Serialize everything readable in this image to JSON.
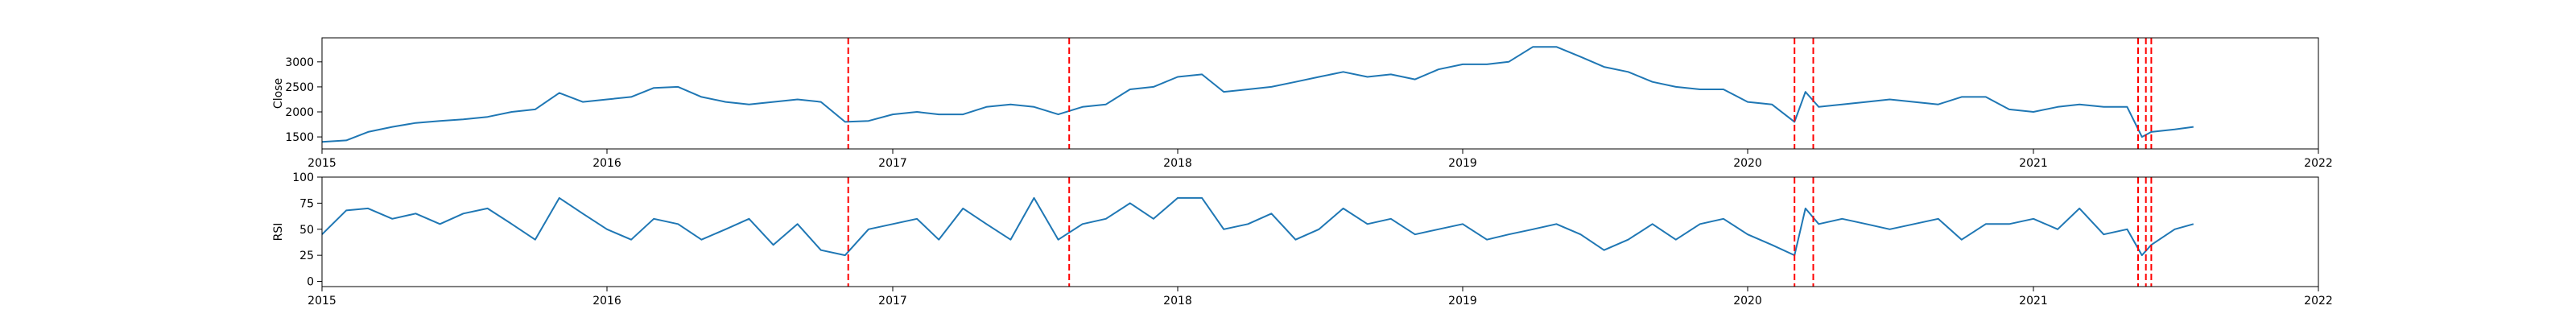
{
  "chart_data": [
    {
      "type": "line",
      "panel": "top",
      "title": "",
      "xlabel": "",
      "ylabel": "Close",
      "xlim": [
        "2015-01-01",
        "2022-01-01"
      ],
      "ylim": [
        1260,
        3480
      ],
      "xticks": [
        "2015",
        "2016",
        "2017",
        "2018",
        "2019",
        "2020",
        "2021",
        "2022"
      ],
      "yticks": [
        1500,
        2000,
        2500,
        3000
      ],
      "grid": false,
      "line_color": "#1f77b4",
      "vline_color": "#ff0000",
      "series": [
        {
          "x": [
            "2015-01-01",
            "2015-02-01",
            "2015-03-01",
            "2015-04-01",
            "2015-05-01",
            "2015-06-01",
            "2015-07-01",
            "2015-08-01",
            "2015-09-01",
            "2015-10-01",
            "2015-11-01",
            "2015-12-01",
            "2016-01-01",
            "2016-02-01",
            "2016-03-01",
            "2016-04-01",
            "2016-05-01",
            "2016-06-01",
            "2016-07-01",
            "2016-08-01",
            "2016-09-01",
            "2016-10-01",
            "2016-11-01",
            "2016-12-01",
            "2017-01-01",
            "2017-02-01",
            "2017-03-01",
            "2017-04-01",
            "2017-05-01",
            "2017-06-01",
            "2017-07-01",
            "2017-08-01",
            "2017-09-01",
            "2017-10-01",
            "2017-11-01",
            "2017-12-01",
            "2018-01-01",
            "2018-02-01",
            "2018-03-01",
            "2018-04-01",
            "2018-05-01",
            "2018-06-01",
            "2018-07-01",
            "2018-08-01",
            "2018-09-01",
            "2018-10-01",
            "2018-11-01",
            "2018-12-01",
            "2019-01-01",
            "2019-02-01",
            "2019-03-01",
            "2019-04-01",
            "2019-05-01",
            "2019-06-01",
            "2019-07-01",
            "2019-08-01",
            "2019-09-01",
            "2019-10-01",
            "2019-11-01",
            "2019-12-01",
            "2020-01-01",
            "2020-02-01",
            "2020-03-01",
            "2020-03-15",
            "2020-04-01",
            "2020-05-01",
            "2020-06-01",
            "2020-07-01",
            "2020-08-01",
            "2020-09-01",
            "2020-10-01",
            "2020-11-01",
            "2020-12-01",
            "2021-01-01",
            "2021-02-01",
            "2021-03-01",
            "2021-04-01",
            "2021-05-01",
            "2021-05-20",
            "2021-06-01",
            "2021-07-01",
            "2021-07-25"
          ],
          "values": [
            1400,
            1430,
            1600,
            1700,
            1780,
            1820,
            1850,
            1900,
            2000,
            2050,
            2380,
            2200,
            2250,
            2300,
            2480,
            2500,
            2300,
            2200,
            2150,
            2200,
            2250,
            2200,
            1800,
            1820,
            1950,
            2000,
            1950,
            1950,
            2100,
            2150,
            2100,
            1950,
            2100,
            2150,
            2450,
            2500,
            2700,
            2750,
            2400,
            2450,
            2500,
            2600,
            2700,
            2800,
            2700,
            2750,
            2650,
            2850,
            2950,
            2950,
            3000,
            3300,
            3300,
            3100,
            2900,
            2800,
            2600,
            2500,
            2450,
            2450,
            2200,
            2150,
            1800,
            2400,
            2100,
            2150,
            2200,
            2250,
            2200,
            2150,
            2300,
            2300,
            2050,
            2000,
            2100,
            2150,
            2100,
            2100,
            1500,
            1600,
            1650,
            1700
          ]
        }
      ],
      "vlines": [
        "2016-11-05",
        "2017-08-15",
        "2020-03-01",
        "2020-03-25",
        "2021-05-15",
        "2021-05-25",
        "2021-06-01"
      ]
    },
    {
      "type": "line",
      "panel": "bottom",
      "title": "",
      "xlabel": "",
      "ylabel": "RSI",
      "xlim": [
        "2015-01-01",
        "2022-01-01"
      ],
      "ylim": [
        -5,
        100
      ],
      "xticks": [
        "2015",
        "2016",
        "2017",
        "2018",
        "2019",
        "2020",
        "2021",
        "2022"
      ],
      "yticks": [
        0,
        25,
        50,
        75,
        100
      ],
      "grid": false,
      "line_color": "#1f77b4",
      "vline_color": "#ff0000",
      "series": [
        {
          "x": [
            "2015-01-01",
            "2015-02-01",
            "2015-03-01",
            "2015-04-01",
            "2015-05-01",
            "2015-06-01",
            "2015-07-01",
            "2015-08-01",
            "2015-09-01",
            "2015-10-01",
            "2015-11-01",
            "2015-12-01",
            "2016-01-01",
            "2016-02-01",
            "2016-03-01",
            "2016-04-01",
            "2016-05-01",
            "2016-06-01",
            "2016-07-01",
            "2016-08-01",
            "2016-09-01",
            "2016-10-01",
            "2016-11-01",
            "2016-12-01",
            "2017-01-01",
            "2017-02-01",
            "2017-03-01",
            "2017-04-01",
            "2017-05-01",
            "2017-06-01",
            "2017-07-01",
            "2017-08-01",
            "2017-09-01",
            "2017-10-01",
            "2017-11-01",
            "2017-12-01",
            "2018-01-01",
            "2018-02-01",
            "2018-03-01",
            "2018-04-01",
            "2018-05-01",
            "2018-06-01",
            "2018-07-01",
            "2018-08-01",
            "2018-09-01",
            "2018-10-01",
            "2018-11-01",
            "2018-12-01",
            "2019-01-01",
            "2019-02-01",
            "2019-03-01",
            "2019-04-01",
            "2019-05-01",
            "2019-06-01",
            "2019-07-01",
            "2019-08-01",
            "2019-09-01",
            "2019-10-01",
            "2019-11-01",
            "2019-12-01",
            "2020-01-01",
            "2020-02-01",
            "2020-03-01",
            "2020-03-15",
            "2020-04-01",
            "2020-05-01",
            "2020-06-01",
            "2020-07-01",
            "2020-08-01",
            "2020-09-01",
            "2020-10-01",
            "2020-11-01",
            "2020-12-01",
            "2021-01-01",
            "2021-02-01",
            "2021-03-01",
            "2021-04-01",
            "2021-05-01",
            "2021-05-20",
            "2021-06-01",
            "2021-07-01",
            "2021-07-25"
          ],
          "values": [
            45,
            68,
            70,
            60,
            65,
            55,
            65,
            70,
            55,
            40,
            80,
            65,
            50,
            40,
            60,
            55,
            40,
            50,
            60,
            35,
            55,
            30,
            25,
            50,
            55,
            60,
            40,
            70,
            55,
            40,
            80,
            40,
            55,
            60,
            75,
            60,
            80,
            80,
            50,
            55,
            65,
            40,
            50,
            70,
            55,
            60,
            45,
            50,
            55,
            40,
            45,
            50,
            55,
            45,
            30,
            40,
            55,
            40,
            55,
            60,
            45,
            35,
            25,
            70,
            55,
            60,
            55,
            50,
            55,
            60,
            40,
            55,
            55,
            60,
            50,
            70,
            45,
            50,
            25,
            35,
            50,
            55
          ]
        }
      ],
      "vlines": [
        "2016-11-05",
        "2017-08-15",
        "2020-03-01",
        "2020-03-25",
        "2021-05-15",
        "2021-05-25",
        "2021-06-01"
      ]
    }
  ]
}
